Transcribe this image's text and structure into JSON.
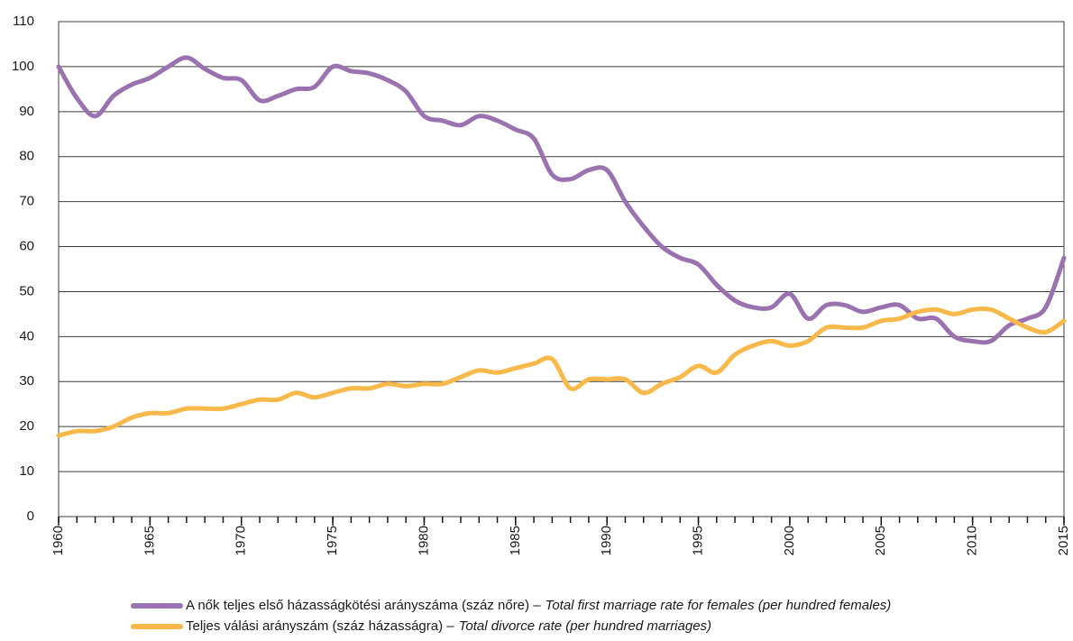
{
  "chart_data": {
    "type": "line",
    "x": [
      1960,
      1961,
      1962,
      1963,
      1964,
      1965,
      1966,
      1967,
      1968,
      1969,
      1970,
      1971,
      1972,
      1973,
      1974,
      1975,
      1976,
      1977,
      1978,
      1979,
      1980,
      1981,
      1982,
      1983,
      1984,
      1985,
      1986,
      1987,
      1988,
      1989,
      1990,
      1991,
      1992,
      1993,
      1994,
      1995,
      1996,
      1997,
      1998,
      1999,
      2000,
      2001,
      2002,
      2003,
      2004,
      2005,
      2006,
      2007,
      2008,
      2009,
      2010,
      2011,
      2012,
      2013,
      2014,
      2015
    ],
    "series": [
      {
        "name": "A nők teljes első házasságkötési arányszáma (száz nőre) –",
        "name_en": "Total first marriage rate for females (per hundred females)",
        "color": "#9b72b0",
        "values": [
          100,
          93,
          89,
          93.5,
          96,
          97.5,
          100,
          102,
          99.5,
          97.5,
          97,
          92.5,
          93.5,
          95,
          95.5,
          100,
          99,
          98.5,
          97,
          94.5,
          89,
          88,
          87,
          89,
          88,
          86,
          84,
          76,
          75,
          77,
          77,
          70,
          64.5,
          60,
          57.5,
          56,
          51.5,
          48,
          46.5,
          46.5,
          49.5,
          44,
          47,
          47,
          45.5,
          46.5,
          47,
          44,
          44,
          40,
          39,
          39,
          42.5,
          44,
          46.5,
          57.5
        ]
      },
      {
        "name": "Teljes válási arányszám (száz házasságra) –",
        "name_en": "Total divorce rate (per hundred marriages)",
        "color": "#f9b84a",
        "values": [
          18,
          19,
          19,
          20,
          22,
          23,
          23,
          24,
          24,
          24,
          25,
          26,
          26,
          27.5,
          26.5,
          27.5,
          28.5,
          28.5,
          29.5,
          29,
          29.5,
          29.5,
          31,
          32.5,
          32,
          33,
          34,
          35,
          28.5,
          30.5,
          30.5,
          30.5,
          27.5,
          29.5,
          31,
          33.5,
          32,
          36,
          38,
          39,
          38,
          39,
          42,
          42,
          42,
          43.5,
          44,
          45.5,
          46,
          45,
          46,
          46,
          44,
          42,
          41,
          43.5
        ]
      }
    ],
    "xlim": [
      1960,
      2015
    ],
    "xticks": [
      1960,
      1965,
      1970,
      1975,
      1980,
      1985,
      1990,
      1995,
      2000,
      2005,
      2010,
      2015
    ],
    "ylim": [
      0,
      110
    ],
    "yticks": [
      0,
      10,
      20,
      30,
      40,
      50,
      60,
      70,
      80,
      90,
      100,
      110
    ],
    "grid": true
  }
}
